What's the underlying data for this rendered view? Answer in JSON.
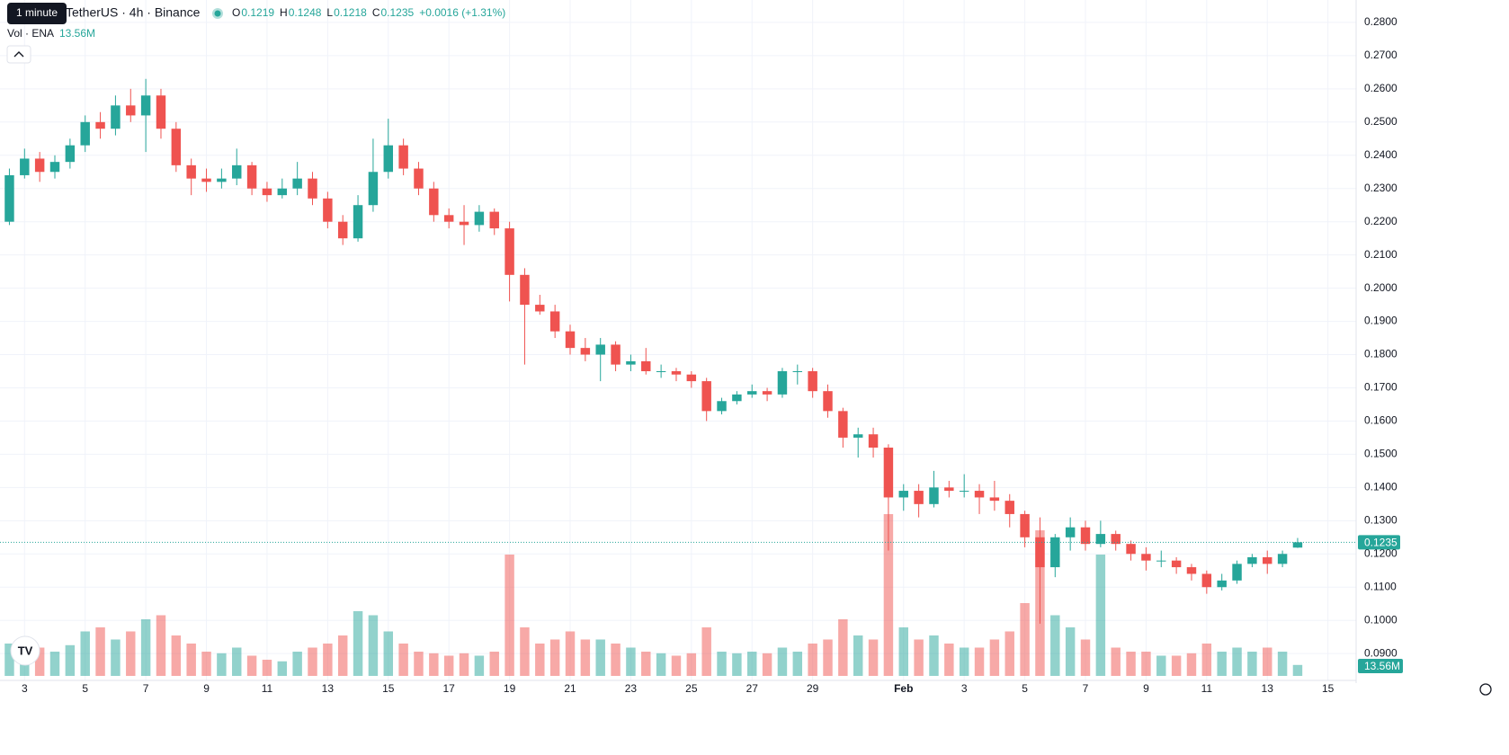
{
  "header": {
    "tooltip": "1 minute",
    "symbol": "TetherUS · 4h · Binance",
    "ohlc": [
      {
        "key": "O",
        "value": "0.1219"
      },
      {
        "key": "H",
        "value": "0.1248"
      },
      {
        "key": "L",
        "value": "0.1218"
      },
      {
        "key": "C",
        "value": "0.1235"
      }
    ],
    "change": "+0.0016 (+1.31%)",
    "volume_title": "Vol · ENA",
    "volume_value": "13.56M"
  },
  "chart_data": {
    "type": "candlestick",
    "up_color": "#26a69a",
    "down_color": "#ef5350",
    "grid": true,
    "xlim": [
      2.19,
      46.93
    ],
    "ylim": [
      0.0895,
      0.2835
    ],
    "xticks": [
      3,
      5,
      7,
      9,
      11,
      13,
      15,
      17,
      19,
      21,
      23,
      25,
      27,
      29,
      {
        "value": 32,
        "label": "Feb"
      },
      {
        "value": 34,
        "label": "3"
      },
      {
        "value": 36,
        "label": "5"
      },
      {
        "value": 38,
        "label": "7"
      },
      {
        "value": 40,
        "label": "9"
      },
      {
        "value": 42,
        "label": "11"
      },
      {
        "value": 44,
        "label": "13"
      },
      {
        "value": 46,
        "label": "15"
      }
    ],
    "yticks": [
      {
        "value": 0.28,
        "label": "0.2800"
      },
      {
        "value": 0.27,
        "label": "0.2700"
      },
      {
        "value": 0.26,
        "label": "0.2600"
      },
      {
        "value": 0.25,
        "label": "0.2500"
      },
      {
        "value": 0.24,
        "label": "0.2400"
      },
      {
        "value": 0.23,
        "label": "0.2300"
      },
      {
        "value": 0.22,
        "label": "0.2200"
      },
      {
        "value": 0.21,
        "label": "0.2100"
      },
      {
        "value": 0.2,
        "label": "0.2000"
      },
      {
        "value": 0.19,
        "label": "0.1900"
      },
      {
        "value": 0.18,
        "label": "0.1800"
      },
      {
        "value": 0.17,
        "label": "0.1700"
      },
      {
        "value": 0.16,
        "label": "0.1600"
      },
      {
        "value": 0.15,
        "label": "0.1500"
      },
      {
        "value": 0.14,
        "label": "0.1400"
      },
      {
        "value": 0.13,
        "label": "0.1300"
      },
      {
        "value": 0.12,
        "label": "0.1200"
      },
      {
        "value": 0.11,
        "label": "0.1100"
      },
      {
        "value": 0.1,
        "label": "0.1000"
      },
      {
        "value": 0.09,
        "label": "0.0900"
      }
    ],
    "x": [
      2.5,
      3,
      3.5,
      4,
      4.5,
      5,
      5.5,
      6,
      6.5,
      7,
      7.5,
      8,
      8.5,
      9,
      9.5,
      10,
      10.5,
      11,
      11.5,
      12,
      12.5,
      13,
      13.5,
      14,
      14.5,
      15,
      15.5,
      16,
      16.5,
      17,
      17.5,
      18,
      18.5,
      19,
      19.5,
      20,
      20.5,
      21,
      21.5,
      22,
      22.5,
      23,
      23.5,
      24,
      24.5,
      25,
      25.5,
      26,
      26.5,
      27,
      27.5,
      28,
      28.5,
      29,
      29.5,
      30,
      30.5,
      31,
      31.5,
      32,
      32.5,
      33,
      33.5,
      34,
      34.5,
      35,
      35.5,
      36,
      36.5,
      37,
      37.5,
      38,
      38.5,
      39,
      39.5,
      40,
      40.5,
      41,
      41.5,
      42,
      42.5,
      43,
      43.5,
      44,
      44.5,
      45
    ],
    "open": [
      0.22,
      0.234,
      0.239,
      0.235,
      0.238,
      0.243,
      0.25,
      0.248,
      0.255,
      0.252,
      0.258,
      0.248,
      0.237,
      0.233,
      0.232,
      0.233,
      0.237,
      0.23,
      0.228,
      0.23,
      0.233,
      0.227,
      0.22,
      0.215,
      0.225,
      0.235,
      0.243,
      0.236,
      0.23,
      0.222,
      0.22,
      0.219,
      0.223,
      0.218,
      0.204,
      0.195,
      0.193,
      0.187,
      0.182,
      0.18,
      0.183,
      0.177,
      0.178,
      0.175,
      0.175,
      0.174,
      0.172,
      0.163,
      0.166,
      0.168,
      0.169,
      0.168,
      0.175,
      0.175,
      0.169,
      0.163,
      0.155,
      0.156,
      0.152,
      0.137,
      0.139,
      0.135,
      0.14,
      0.139,
      0.139,
      0.137,
      0.136,
      0.132,
      0.125,
      0.116,
      0.125,
      0.128,
      0.123,
      0.126,
      0.123,
      0.12,
      0.118,
      0.118,
      0.116,
      0.114,
      0.11,
      0.112,
      0.117,
      0.119,
      0.117,
      0.1219
    ],
    "high": [
      0.236,
      0.242,
      0.241,
      0.24,
      0.245,
      0.252,
      0.253,
      0.258,
      0.26,
      0.263,
      0.26,
      0.25,
      0.239,
      0.236,
      0.236,
      0.242,
      0.238,
      0.232,
      0.233,
      0.238,
      0.235,
      0.229,
      0.222,
      0.228,
      0.245,
      0.251,
      0.245,
      0.238,
      0.232,
      0.224,
      0.225,
      0.225,
      0.224,
      0.22,
      0.206,
      0.198,
      0.195,
      0.189,
      0.185,
      0.185,
      0.184,
      0.18,
      0.182,
      0.177,
      0.176,
      0.175,
      0.173,
      0.167,
      0.169,
      0.171,
      0.17,
      0.176,
      0.177,
      0.176,
      0.171,
      0.164,
      0.158,
      0.158,
      0.153,
      0.141,
      0.141,
      0.145,
      0.142,
      0.144,
      0.141,
      0.142,
      0.138,
      0.133,
      0.131,
      0.126,
      0.131,
      0.13,
      0.13,
      0.127,
      0.124,
      0.122,
      0.121,
      0.119,
      0.117,
      0.115,
      0.114,
      0.118,
      0.12,
      0.121,
      0.121,
      0.1248
    ],
    "low": [
      0.219,
      0.233,
      0.232,
      0.233,
      0.236,
      0.241,
      0.245,
      0.246,
      0.25,
      0.241,
      0.245,
      0.235,
      0.228,
      0.229,
      0.23,
      0.231,
      0.228,
      0.226,
      0.227,
      0.228,
      0.225,
      0.218,
      0.213,
      0.214,
      0.223,
      0.233,
      0.234,
      0.228,
      0.22,
      0.218,
      0.213,
      0.217,
      0.216,
      0.196,
      0.177,
      0.192,
      0.185,
      0.18,
      0.178,
      0.172,
      0.175,
      0.175,
      0.174,
      0.173,
      0.172,
      0.17,
      0.16,
      0.162,
      0.165,
      0.167,
      0.166,
      0.167,
      0.171,
      0.167,
      0.161,
      0.152,
      0.149,
      0.149,
      0.121,
      0.133,
      0.131,
      0.134,
      0.137,
      0.137,
      0.132,
      0.133,
      0.128,
      0.122,
      0.099,
      0.113,
      0.121,
      0.121,
      0.122,
      0.121,
      0.118,
      0.115,
      0.116,
      0.114,
      0.112,
      0.108,
      0.109,
      0.111,
      0.116,
      0.114,
      0.116,
      0.1218
    ],
    "close": [
      0.234,
      0.239,
      0.235,
      0.238,
      0.243,
      0.25,
      0.248,
      0.255,
      0.252,
      0.258,
      0.248,
      0.237,
      0.233,
      0.232,
      0.233,
      0.237,
      0.23,
      0.228,
      0.23,
      0.233,
      0.227,
      0.22,
      0.215,
      0.225,
      0.235,
      0.243,
      0.236,
      0.23,
      0.222,
      0.22,
      0.219,
      0.223,
      0.218,
      0.204,
      0.195,
      0.193,
      0.187,
      0.182,
      0.18,
      0.183,
      0.177,
      0.178,
      0.175,
      0.175,
      0.174,
      0.172,
      0.163,
      0.166,
      0.168,
      0.169,
      0.168,
      0.175,
      0.175,
      0.169,
      0.163,
      0.155,
      0.156,
      0.152,
      0.137,
      0.139,
      0.135,
      0.14,
      0.139,
      0.139,
      0.137,
      0.136,
      0.132,
      0.125,
      0.116,
      0.125,
      0.128,
      0.123,
      0.126,
      0.123,
      0.12,
      0.118,
      0.118,
      0.116,
      0.114,
      0.11,
      0.112,
      0.117,
      0.119,
      0.117,
      0.12,
      0.1235
    ],
    "volume": [
      40,
      45,
      35,
      30,
      38,
      55,
      60,
      45,
      55,
      70,
      75,
      50,
      40,
      30,
      28,
      35,
      25,
      20,
      18,
      30,
      35,
      40,
      50,
      80,
      75,
      55,
      40,
      30,
      28,
      25,
      28,
      25,
      30,
      150,
      60,
      40,
      45,
      55,
      45,
      45,
      40,
      35,
      30,
      28,
      25,
      28,
      60,
      30,
      28,
      30,
      28,
      35,
      30,
      40,
      45,
      70,
      50,
      45,
      200,
      60,
      45,
      50,
      40,
      35,
      35,
      45,
      55,
      90,
      180,
      75,
      60,
      45,
      150,
      35,
      30,
      30,
      25,
      25,
      28,
      40,
      30,
      35,
      30,
      35,
      30,
      13.56
    ]
  }
}
